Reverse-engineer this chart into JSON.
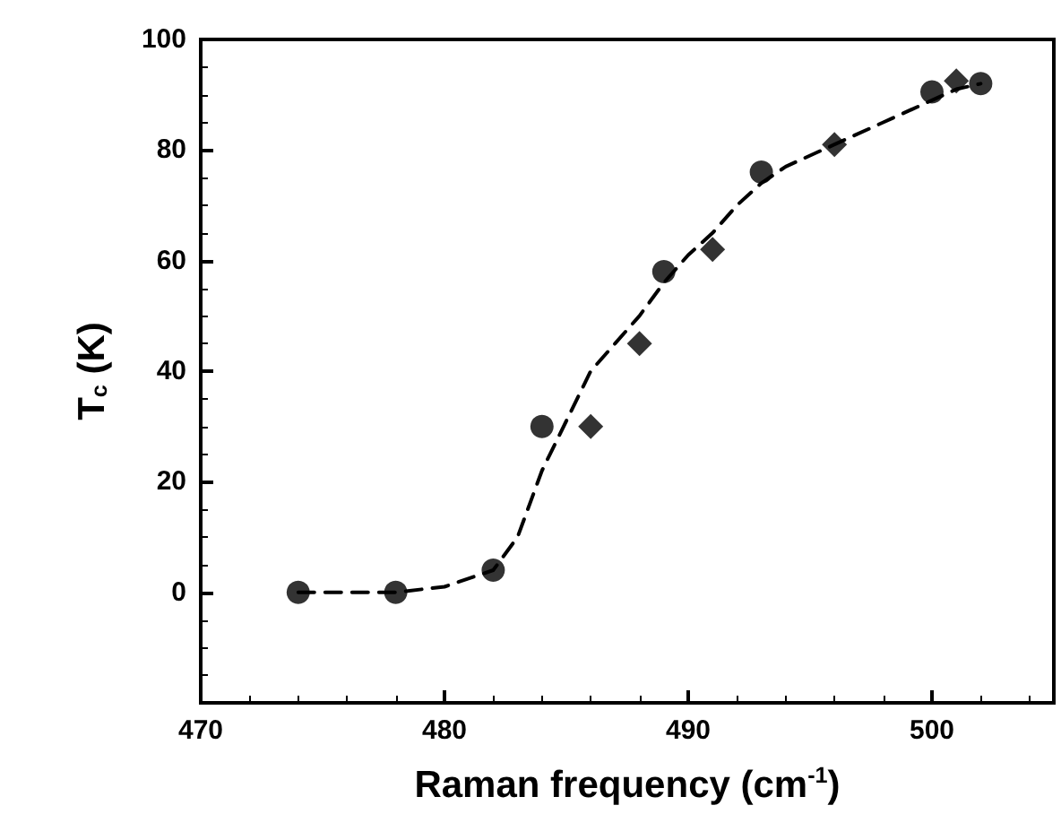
{
  "chart_data": {
    "type": "scatter",
    "xlabel": "Raman frequency (cm$^{-1}$)",
    "ylabel": "T$_{c}$ (K)",
    "xlim": [
      470,
      505
    ],
    "xticks": [
      470,
      480,
      490,
      500
    ],
    "ylim": [
      -20,
      100
    ],
    "yticks": [
      0,
      20,
      40,
      60,
      80,
      100
    ],
    "grid": false,
    "series": [
      {
        "marker": "circle",
        "color": "#000000",
        "x": [
          474,
          478,
          482,
          484,
          489,
          493,
          500,
          502
        ],
        "values": [
          0,
          0,
          4,
          30,
          58,
          76,
          90.5,
          92
        ]
      },
      {
        "marker": "diamond",
        "color": "#000000",
        "x": [
          486,
          488,
          491,
          496,
          501
        ],
        "values": [
          30,
          45,
          62,
          81,
          92.5
        ]
      },
      {
        "type": "line",
        "marker": "none",
        "line_style": "dashed",
        "color": "#000000",
        "x": [
          474,
          478,
          480,
          482,
          483,
          484,
          485,
          486,
          487,
          488,
          489,
          490,
          491,
          492,
          493,
          494,
          496,
          498,
          500,
          501,
          502
        ],
        "values": [
          0,
          0,
          1,
          4,
          10,
          22,
          31,
          40,
          45,
          50,
          56,
          61,
          65,
          70,
          74,
          77,
          81,
          85,
          89,
          91,
          92
        ]
      }
    ]
  }
}
